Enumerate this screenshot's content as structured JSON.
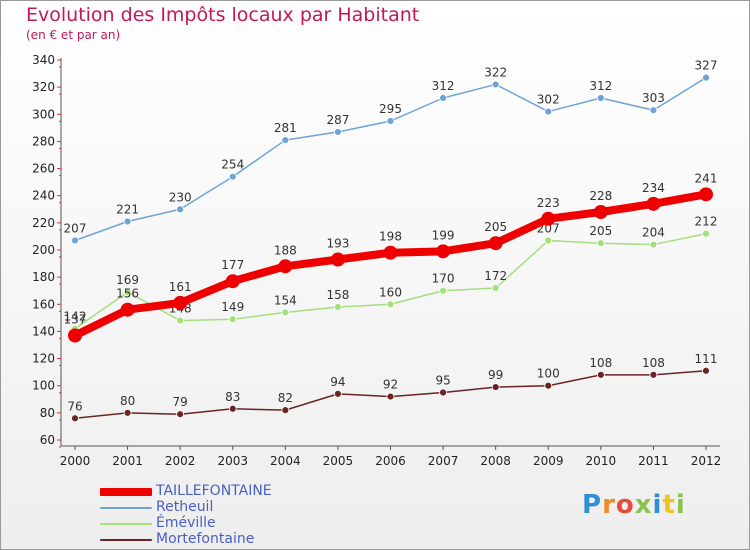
{
  "chart_data": {
    "type": "line",
    "title": "Evolution des Impôts locaux par Habitant",
    "subtitle": "(en € et par an)",
    "xlabel": "",
    "ylabel": "",
    "x": [
      "2000",
      "2001",
      "2002",
      "2003",
      "2004",
      "2005",
      "2006",
      "2007",
      "2008",
      "2009",
      "2010",
      "2011",
      "2012"
    ],
    "ylim": [
      60,
      340
    ],
    "yticks": [
      60,
      80,
      100,
      120,
      140,
      160,
      180,
      200,
      220,
      240,
      260,
      280,
      300,
      320,
      340
    ],
    "grid": false,
    "legend_position": "bottom-left",
    "series": [
      {
        "name": "TAILLEFONTAINE",
        "color": "#ee0000",
        "values": [
          137,
          156,
          161,
          177,
          188,
          193,
          198,
          199,
          205,
          223,
          228,
          234,
          241
        ]
      },
      {
        "name": "Retheuil",
        "color": "#6fa3d6",
        "values": [
          207,
          221,
          230,
          254,
          281,
          287,
          295,
          312,
          322,
          302,
          312,
          303,
          327
        ]
      },
      {
        "name": "Éméville",
        "color": "#a5de7c",
        "values": [
          142,
          169,
          148,
          149,
          154,
          158,
          160,
          170,
          172,
          207,
          205,
          204,
          212
        ]
      },
      {
        "name": "Mortefontaine",
        "color": "#6b2424",
        "values": [
          76,
          80,
          79,
          83,
          82,
          94,
          92,
          95,
          99,
          100,
          108,
          108,
          111
        ]
      }
    ]
  },
  "logo": {
    "letters": [
      "P",
      "r",
      "o",
      "x",
      "i",
      "t",
      "i"
    ]
  }
}
